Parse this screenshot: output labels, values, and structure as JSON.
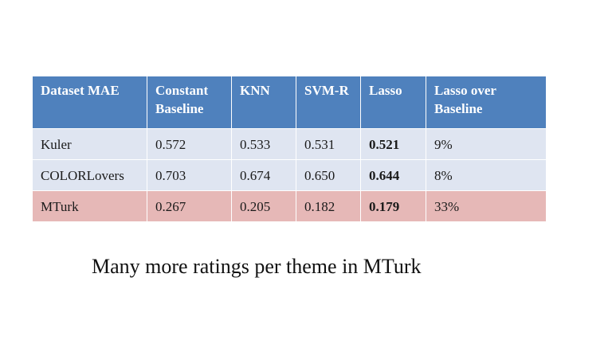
{
  "table": {
    "headers": [
      "Dataset MAE",
      "Constant Baseline",
      "KNN",
      "SVM-R",
      "Lasso",
      "Lasso over Baseline"
    ],
    "rows": [
      {
        "dataset": "Kuler",
        "constant": "0.572",
        "knn": "0.533",
        "svmr": "0.531",
        "lasso": "0.521",
        "improvement": "9%"
      },
      {
        "dataset": "COLORLovers",
        "constant": "0.703",
        "knn": "0.674",
        "svmr": "0.650",
        "lasso": "0.644",
        "improvement": "8%"
      },
      {
        "dataset": "MTurk",
        "constant": "0.267",
        "knn": "0.205",
        "svmr": "0.182",
        "lasso": "0.179",
        "improvement": "33%"
      }
    ]
  },
  "note": "Many more ratings per theme in MTurk",
  "colors": {
    "header_bg": "#4f81bd",
    "row_bg": "#dfe5f1",
    "highlight_row_bg": "#e6b8b7"
  }
}
